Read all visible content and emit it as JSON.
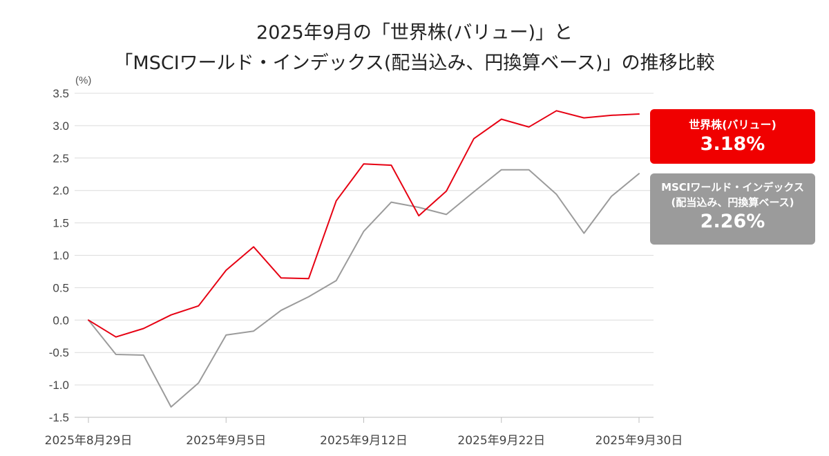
{
  "chart_data": {
    "type": "line",
    "title_lines": [
      "2025年9月の「世界株(バリュー)」と",
      "「MSCIワールド・インデックス(配当込み、円換算ベース)」の推移比較"
    ],
    "y_unit": "(%)",
    "ylim": [
      -1.5,
      3.5
    ],
    "y_ticks": [
      3.5,
      3.0,
      2.5,
      2.0,
      1.5,
      1.0,
      0.5,
      0.0,
      -0.5,
      -1.0,
      -1.5
    ],
    "y_tick_labels": [
      "3.5",
      "3.0",
      "2.5",
      "2.0",
      "1.5",
      "1.0",
      "0.5",
      "0.0",
      "-0.5",
      "-1.0",
      "-1.5"
    ],
    "x_labels": [
      {
        "index": 0,
        "label": "2025年8月29日"
      },
      {
        "index": 5,
        "label": "2025年9月5日"
      },
      {
        "index": 10,
        "label": "2025年9月12日"
      },
      {
        "index": 15,
        "label": "2025年9月22日"
      },
      {
        "index": 20,
        "label": "2025年9月30日"
      }
    ],
    "grid": true,
    "series": [
      {
        "name": "世界株(バリュー)",
        "color": "#e60012",
        "values": [
          0.0,
          -0.26,
          -0.13,
          0.08,
          0.22,
          0.77,
          1.13,
          0.65,
          0.64,
          1.84,
          2.41,
          2.39,
          1.61,
          1.99,
          2.8,
          3.1,
          2.98,
          3.23,
          3.12,
          3.16,
          3.18
        ]
      },
      {
        "name": "MSCIワールド・インデックス(配当込み、円換算ベース)",
        "color": "#9b9b9b",
        "values": [
          0.0,
          -0.53,
          -0.54,
          -1.34,
          -0.97,
          -0.23,
          -0.17,
          0.15,
          0.36,
          0.61,
          1.37,
          1.82,
          1.74,
          1.63,
          1.98,
          2.32,
          2.32,
          1.94,
          1.34,
          1.91,
          2.26
        ]
      }
    ],
    "end_labels": [
      {
        "name_lines": [
          "世界株(バリュー)"
        ],
        "value": "3.18%",
        "color": "#f00000"
      },
      {
        "name_lines": [
          "MSCIワールド・インデックス",
          "(配当込み、円換算ベース)"
        ],
        "value": "2.26%",
        "color": "#9b9b9b"
      }
    ]
  }
}
